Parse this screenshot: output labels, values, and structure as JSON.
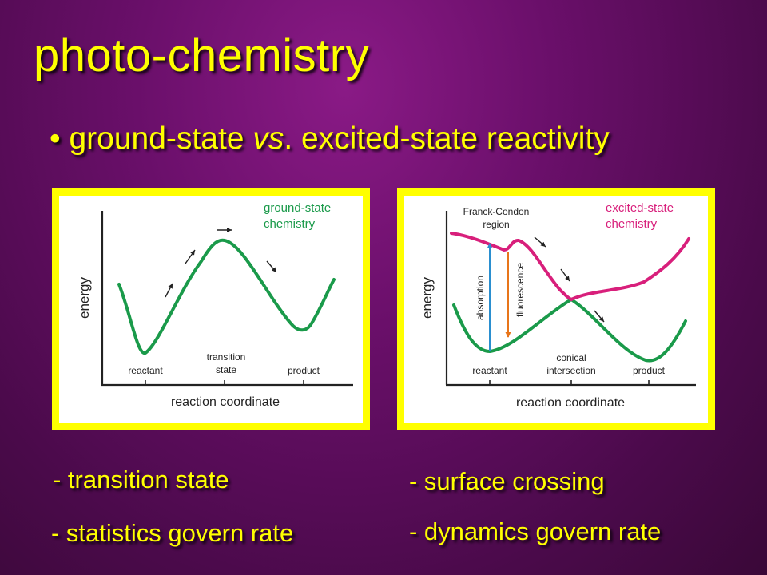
{
  "slide": {
    "title": "photo-chemistry",
    "bullet_prefix": "• ground-state ",
    "bullet_vs": "vs",
    "bullet_suffix": ". excited-state reactivity"
  },
  "diagram_ground": {
    "title_line1": "ground-state",
    "title_line2": "chemistry",
    "y_axis_label": "energy",
    "x_axis_label": "reaction coordinate",
    "ticks": [
      "reactant",
      "transition",
      "state",
      "product"
    ]
  },
  "diagram_excited": {
    "title_line1": "excited-state",
    "title_line2": "chemistry",
    "fc_line1": "Franck-Condon",
    "fc_line2": "region",
    "absorption": "absorption",
    "fluorescence": "fluorescence",
    "y_axis_label": "energy",
    "x_axis_label": "reaction coordinate",
    "ticks": [
      "reactant",
      "conical",
      "intersection",
      "product"
    ]
  },
  "notes": {
    "left_1": "- transition  state",
    "left_2": "- statistics govern rate",
    "right_1": "- surface crossing",
    "right_2": "- dynamics govern rate"
  },
  "colors": {
    "yellow": "#ffff00",
    "green": "#1a9a4a",
    "magenta": "#d81f7b",
    "blue": "#2a8fd0",
    "orange": "#e8751a"
  }
}
